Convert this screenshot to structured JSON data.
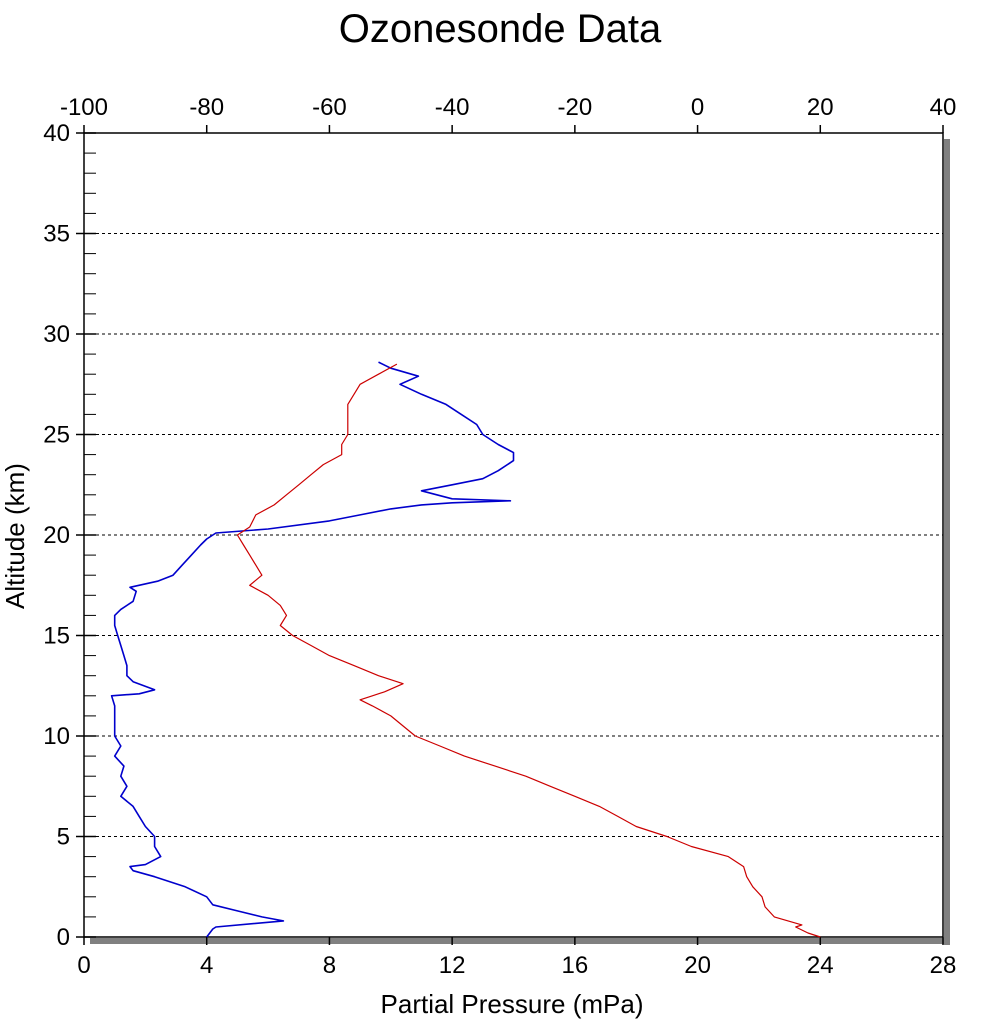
{
  "chart_data": {
    "type": "line",
    "title": "Ozonesonde Data",
    "xlabel": "Partial Pressure (mPa)",
    "ylabel": "Altitude (km)",
    "x_bottom": {
      "ticks": [
        "0",
        "4",
        "8",
        "12",
        "16",
        "20",
        "24",
        "28"
      ],
      "range": [
        0,
        28
      ]
    },
    "x_top": {
      "ticks": [
        "-100",
        "-80",
        "-60",
        "-40",
        "-20",
        "0",
        "20",
        "40"
      ],
      "range": [
        -100,
        40
      ]
    },
    "y": {
      "ticks": [
        "0",
        "5",
        "10",
        "15",
        "20",
        "25",
        "30",
        "35",
        "40"
      ],
      "range": [
        0,
        40
      ]
    },
    "grid": "horizontal dashed at major y ticks",
    "series": [
      {
        "axis": "bottom",
        "color": "#0000cc",
        "points": [
          [
            4.0,
            0.0
          ],
          [
            4.2,
            0.4
          ],
          [
            4.3,
            0.5
          ],
          [
            6.5,
            0.8
          ],
          [
            5.8,
            1.0
          ],
          [
            5.0,
            1.3
          ],
          [
            4.2,
            1.6
          ],
          [
            4.0,
            2.0
          ],
          [
            3.3,
            2.5
          ],
          [
            2.3,
            3.0
          ],
          [
            1.6,
            3.3
          ],
          [
            1.5,
            3.5
          ],
          [
            2.0,
            3.6
          ],
          [
            2.5,
            4.0
          ],
          [
            2.3,
            4.5
          ],
          [
            2.3,
            5.0
          ],
          [
            2.0,
            5.5
          ],
          [
            1.8,
            6.0
          ],
          [
            1.6,
            6.5
          ],
          [
            1.2,
            7.0
          ],
          [
            1.4,
            7.5
          ],
          [
            1.2,
            8.0
          ],
          [
            1.3,
            8.5
          ],
          [
            1.0,
            9.0
          ],
          [
            1.2,
            9.5
          ],
          [
            1.0,
            10.0
          ],
          [
            1.0,
            10.5
          ],
          [
            1.0,
            11.0
          ],
          [
            1.0,
            11.5
          ],
          [
            0.9,
            12.0
          ],
          [
            1.8,
            12.1
          ],
          [
            2.3,
            12.3
          ],
          [
            1.6,
            12.7
          ],
          [
            1.4,
            13.0
          ],
          [
            1.4,
            13.5
          ],
          [
            1.3,
            14.0
          ],
          [
            1.2,
            14.5
          ],
          [
            1.1,
            15.0
          ],
          [
            1.0,
            15.5
          ],
          [
            1.0,
            16.0
          ],
          [
            1.2,
            16.3
          ],
          [
            1.6,
            16.7
          ],
          [
            1.7,
            17.2
          ],
          [
            1.5,
            17.4
          ],
          [
            2.4,
            17.7
          ],
          [
            2.9,
            18.0
          ],
          [
            3.2,
            18.5
          ],
          [
            3.5,
            19.0
          ],
          [
            3.8,
            19.5
          ],
          [
            4.0,
            19.8
          ],
          [
            4.3,
            20.1
          ],
          [
            6.0,
            20.3
          ],
          [
            8.0,
            20.7
          ],
          [
            9.0,
            21.0
          ],
          [
            10.0,
            21.3
          ],
          [
            11.0,
            21.5
          ],
          [
            12.0,
            21.6
          ],
          [
            13.9,
            21.7
          ],
          [
            12.0,
            21.8
          ],
          [
            11.0,
            22.2
          ],
          [
            12.0,
            22.5
          ],
          [
            13.0,
            22.8
          ],
          [
            13.5,
            23.2
          ],
          [
            14.0,
            23.7
          ],
          [
            14.0,
            24.1
          ],
          [
            13.5,
            24.5
          ],
          [
            13.0,
            25.0
          ],
          [
            12.8,
            25.5
          ],
          [
            12.3,
            26.0
          ],
          [
            11.8,
            26.5
          ],
          [
            11.0,
            27.0
          ],
          [
            10.3,
            27.5
          ],
          [
            10.9,
            27.9
          ],
          [
            10.0,
            28.3
          ],
          [
            9.6,
            28.6
          ]
        ]
      },
      {
        "axis": "top",
        "color": "#cc0000",
        "points": [
          [
            20.0,
            0.0
          ],
          [
            18.0,
            0.2
          ],
          [
            16.0,
            0.5
          ],
          [
            17.0,
            0.6
          ],
          [
            12.5,
            1.0
          ],
          [
            11.0,
            1.5
          ],
          [
            10.5,
            2.0
          ],
          [
            9.0,
            2.5
          ],
          [
            8.0,
            3.0
          ],
          [
            7.5,
            3.5
          ],
          [
            5.0,
            4.0
          ],
          [
            -1.0,
            4.5
          ],
          [
            -5.0,
            5.0
          ],
          [
            -10.0,
            5.5
          ],
          [
            -13.0,
            6.0
          ],
          [
            -16.0,
            6.5
          ],
          [
            -20.0,
            7.0
          ],
          [
            -24.0,
            7.5
          ],
          [
            -28.0,
            8.0
          ],
          [
            -33.0,
            8.5
          ],
          [
            -38.0,
            9.0
          ],
          [
            -42.0,
            9.5
          ],
          [
            -46.0,
            10.0
          ],
          [
            -48.0,
            10.5
          ],
          [
            -50.0,
            11.0
          ],
          [
            -53.0,
            11.5
          ],
          [
            -55.0,
            11.8
          ],
          [
            -53.0,
            12.0
          ],
          [
            -51.0,
            12.2
          ],
          [
            -48.0,
            12.6
          ],
          [
            -52.0,
            13.0
          ],
          [
            -56.0,
            13.5
          ],
          [
            -60.0,
            14.0
          ],
          [
            -63.0,
            14.5
          ],
          [
            -66.0,
            15.0
          ],
          [
            -68.0,
            15.5
          ],
          [
            -67.0,
            16.0
          ],
          [
            -68.0,
            16.5
          ],
          [
            -70.0,
            17.0
          ],
          [
            -73.0,
            17.5
          ],
          [
            -71.0,
            18.0
          ],
          [
            -72.0,
            18.5
          ],
          [
            -73.0,
            19.0
          ],
          [
            -74.0,
            19.5
          ],
          [
            -75.0,
            20.0
          ],
          [
            -73.0,
            20.4
          ],
          [
            -72.0,
            21.0
          ],
          [
            -69.0,
            21.5
          ],
          [
            -67.0,
            22.0
          ],
          [
            -65.0,
            22.5
          ],
          [
            -63.0,
            23.0
          ],
          [
            -61.0,
            23.5
          ],
          [
            -58.0,
            24.0
          ],
          [
            -58.0,
            24.5
          ],
          [
            -57.0,
            25.0
          ],
          [
            -57.0,
            25.5
          ],
          [
            -57.0,
            26.0
          ],
          [
            -57.0,
            26.5
          ],
          [
            -56.0,
            27.0
          ],
          [
            -55.0,
            27.5
          ],
          [
            -52.0,
            28.0
          ],
          [
            -49.0,
            28.5
          ]
        ]
      }
    ]
  }
}
